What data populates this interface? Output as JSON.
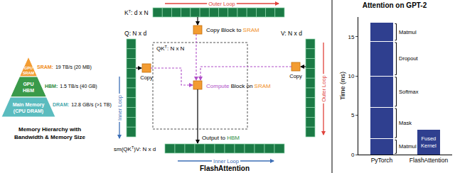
{
  "memory_hierarchy": {
    "levels": [
      {
        "lines": [
          "GPU",
          "SRAM"
        ],
        "name": "SRAM:",
        "spec": "19 TB/s (20 MB)"
      },
      {
        "lines": [
          "GPU",
          "HBM"
        ],
        "name": "HBM:",
        "spec": "1.5 TB/s (40 GB)"
      },
      {
        "lines": [
          "Main Memory",
          "(CPU DRAM)"
        ],
        "name": "DRAM:",
        "spec": "12.8 GB/s (>1 TB)"
      }
    ],
    "caption": [
      "Memory Hierarchy with",
      "Bandwidth & Memory Size"
    ]
  },
  "flashattention": {
    "title": "FlashAttention",
    "k": {
      "name": "K",
      "sup": "T",
      "dims": ": d x N"
    },
    "q": {
      "name": "Q",
      "dims": ": N x d"
    },
    "v": {
      "name": "V",
      "dims": ": N x d"
    },
    "qk": {
      "name": "QK",
      "sup": "T",
      "dims": ": N x N"
    },
    "output": {
      "prefix": "sm(QK",
      "sup": "T",
      "suffix": ")V: N x d"
    },
    "copy_block": [
      "Copy Block to ",
      "SRAM"
    ],
    "copy": "Copy",
    "compute": [
      "Compute",
      " Block on ",
      "SRAM"
    ],
    "output_to": [
      "Output to ",
      "HBM"
    ],
    "outer_loop": "Outer Loop",
    "inner_loop": "Inner Loop"
  },
  "chart_data": {
    "type": "bar",
    "stacked": true,
    "title": "Attention on GPT-2",
    "ylabel": "Time (ms)",
    "color": "#2f3f8f",
    "categories": [
      "PyTorch",
      "FlashAttention"
    ],
    "series": [
      {
        "name": "Matmul",
        "values": [
          2.0,
          null
        ]
      },
      {
        "name": "Mask",
        "values": [
          4.0,
          null
        ]
      },
      {
        "name": "Softmax",
        "values": [
          4.0,
          null
        ]
      },
      {
        "name": "Dropout",
        "values": [
          4.4,
          null
        ]
      },
      {
        "name": "Matmul",
        "values": [
          2.4,
          null
        ]
      },
      {
        "name": "Fused Kernel",
        "values": [
          null,
          3.2
        ]
      }
    ],
    "ylim": [
      0,
      17.5
    ],
    "yticks": [
      0,
      5,
      10,
      15
    ],
    "grid": false
  }
}
